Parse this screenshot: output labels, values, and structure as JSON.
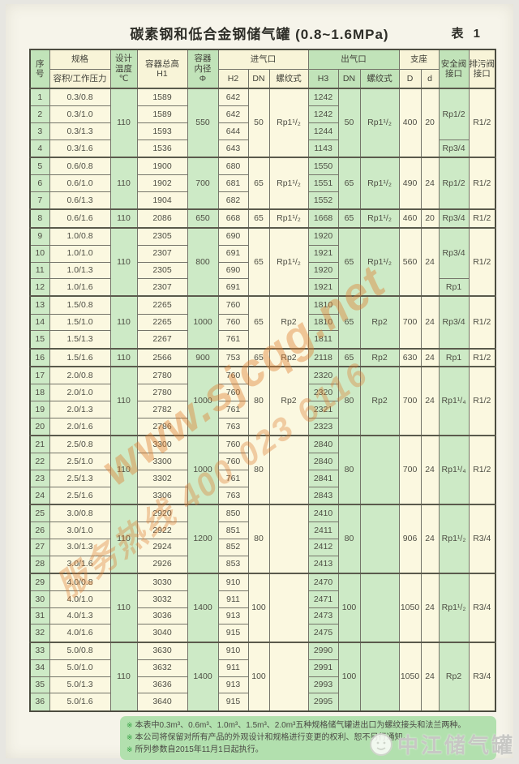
{
  "page": {
    "title": "碳素钢和低合金钢储气罐 (0.8~1.6MPa)",
    "table_label": "表 1"
  },
  "table": {
    "header": {
      "seq": "序\n号",
      "spec_top": "规格",
      "spec_bottom": "容积/工作压力",
      "temp": "设计\n温度\n℃",
      "h1": "容器总高\nH1",
      "dia": "容器\n内径\nΦ",
      "inlet": "进气口",
      "outlet": "出气口",
      "support": "支座",
      "h2": "H2",
      "dn": "DN",
      "thread": "螺纹式",
      "h3": "H3",
      "d_big": "D",
      "d_small": "d",
      "safety": "安全阀\n接口",
      "drain": "排污阀\n接口"
    },
    "col_classes": [
      "g",
      "c",
      "g",
      "c",
      "g",
      "c",
      "c",
      "c",
      "g",
      "g",
      "g",
      "c",
      "c",
      "g",
      "c"
    ],
    "rows": [
      [
        "1",
        "0.3/0.8",
        [
          "110",
          4
        ],
        "1589",
        [
          "550",
          4
        ],
        "642",
        [
          "50",
          4
        ],
        [
          "Rp1¹/₂",
          4
        ],
        "1242",
        [
          "50",
          4
        ],
        [
          "Rp1¹/₂",
          4
        ],
        [
          "400",
          4
        ],
        [
          "20",
          4
        ],
        [
          "Rp1/2",
          3
        ],
        [
          "R1/2",
          4
        ]
      ],
      [
        "2",
        "0.3/1.0",
        null,
        "1589",
        null,
        "642",
        null,
        null,
        "1242",
        null,
        null,
        null,
        null,
        null,
        null
      ],
      [
        "3",
        "0.3/1.3",
        null,
        "1593",
        null,
        "644",
        null,
        null,
        "1244",
        null,
        null,
        null,
        null,
        null,
        null
      ],
      [
        "4",
        "0.3/1.6",
        null,
        "1536",
        null,
        "643",
        null,
        null,
        "1143",
        null,
        null,
        null,
        null,
        "Rp3/4",
        null
      ],
      [
        "5",
        "0.6/0.8",
        [
          "110",
          3
        ],
        "1900",
        [
          "700",
          3
        ],
        "680",
        [
          "65",
          3
        ],
        [
          "Rp1¹/₂",
          3
        ],
        "1550",
        [
          "65",
          3
        ],
        [
          "Rp1¹/₂",
          3
        ],
        [
          "490",
          3
        ],
        [
          "24",
          3
        ],
        [
          "Rp1/2",
          3
        ],
        [
          "R1/2",
          3
        ]
      ],
      [
        "6",
        "0.6/1.0",
        null,
        "1902",
        null,
        "681",
        null,
        null,
        "1551",
        null,
        null,
        null,
        null,
        null,
        null
      ],
      [
        "7",
        "0.6/1.3",
        null,
        "1904",
        null,
        "682",
        null,
        null,
        "1552",
        null,
        null,
        null,
        null,
        null,
        null
      ],
      [
        "8",
        "0.6/1.6",
        "110",
        "2086",
        "650",
        "668",
        "65",
        "Rp1¹/₂",
        "1668",
        "65",
        "Rp1¹/₂",
        "460",
        "20",
        "Rp3/4",
        "R1/2"
      ],
      [
        "9",
        "1.0/0.8",
        [
          "110",
          4
        ],
        "2305",
        [
          "800",
          4
        ],
        "690",
        [
          "65",
          4
        ],
        [
          "Rp1¹/₂",
          4
        ],
        "1920",
        [
          "65",
          4
        ],
        [
          "Rp1¹/₂",
          4
        ],
        [
          "560",
          4
        ],
        [
          "24",
          4
        ],
        [
          "Rp3/4",
          3
        ],
        [
          "R1/2",
          4
        ]
      ],
      [
        "10",
        "1.0/1.0",
        null,
        "2307",
        null,
        "691",
        null,
        null,
        "1921",
        null,
        null,
        null,
        null,
        null,
        null
      ],
      [
        "11",
        "1.0/1.3",
        null,
        "2305",
        null,
        "690",
        null,
        null,
        "1920",
        null,
        null,
        null,
        null,
        null,
        null
      ],
      [
        "12",
        "1.0/1.6",
        null,
        "2307",
        null,
        "691",
        null,
        null,
        "1921",
        null,
        null,
        null,
        null,
        "Rp1",
        null
      ],
      [
        "13",
        "1.5/0.8",
        [
          "110",
          3
        ],
        "2265",
        [
          "1000",
          3
        ],
        "760",
        [
          "65",
          3
        ],
        [
          "Rp2",
          3
        ],
        "1810",
        [
          "65",
          3
        ],
        [
          "Rp2",
          3
        ],
        [
          "700",
          3
        ],
        [
          "24",
          3
        ],
        [
          "Rp3/4",
          3
        ],
        [
          "R1/2",
          3
        ]
      ],
      [
        "14",
        "1.5/1.0",
        null,
        "2265",
        null,
        "760",
        null,
        null,
        "1810",
        null,
        null,
        null,
        null,
        null,
        null
      ],
      [
        "15",
        "1.5/1.3",
        null,
        "2267",
        null,
        "761",
        null,
        null,
        "1811",
        null,
        null,
        null,
        null,
        null,
        null
      ],
      [
        "16",
        "1.5/1.6",
        "110",
        "2566",
        "900",
        "753",
        "65",
        "Rp2",
        "2118",
        "65",
        "Rp2",
        "630",
        "24",
        "Rp1",
        "R1/2"
      ],
      [
        "17",
        "2.0/0.8",
        [
          "110",
          4
        ],
        "2780",
        [
          "1000",
          4
        ],
        "760",
        [
          "80",
          4
        ],
        [
          "Rp2",
          4
        ],
        "2320",
        [
          "80",
          4
        ],
        [
          "Rp2",
          4
        ],
        [
          "700",
          4
        ],
        [
          "24",
          4
        ],
        [
          "Rp1¹/₄",
          4
        ],
        [
          "R1/2",
          4
        ]
      ],
      [
        "18",
        "2.0/1.0",
        null,
        "2780",
        null,
        "760",
        null,
        null,
        "2320",
        null,
        null,
        null,
        null,
        null,
        null
      ],
      [
        "19",
        "2.0/1.3",
        null,
        "2782",
        null,
        "761",
        null,
        null,
        "2321",
        null,
        null,
        null,
        null,
        null,
        null
      ],
      [
        "20",
        "2.0/1.6",
        null,
        "2786",
        null,
        "763",
        null,
        null,
        "2323",
        null,
        null,
        null,
        null,
        null,
        null
      ],
      [
        "21",
        "2.5/0.8",
        [
          "110",
          4
        ],
        "3300",
        [
          "1000",
          4
        ],
        "760",
        [
          "80",
          4
        ],
        [
          "",
          4
        ],
        "2840",
        [
          "80",
          4
        ],
        [
          "",
          4
        ],
        [
          "700",
          4
        ],
        [
          "24",
          4
        ],
        [
          "Rp1¹/₄",
          4
        ],
        [
          "R1/2",
          4
        ]
      ],
      [
        "22",
        "2.5/1.0",
        null,
        "3300",
        null,
        "760",
        null,
        null,
        "2840",
        null,
        null,
        null,
        null,
        null,
        null
      ],
      [
        "23",
        "2.5/1.3",
        null,
        "3302",
        null,
        "761",
        null,
        null,
        "2841",
        null,
        null,
        null,
        null,
        null,
        null
      ],
      [
        "24",
        "2.5/1.6",
        null,
        "3306",
        null,
        "763",
        null,
        null,
        "2843",
        null,
        null,
        null,
        null,
        null,
        null
      ],
      [
        "25",
        "3.0/0.8",
        [
          "110",
          4
        ],
        "2920",
        [
          "1200",
          4
        ],
        "850",
        [
          "80",
          4
        ],
        [
          "",
          4
        ],
        "2410",
        [
          "80",
          4
        ],
        [
          "",
          4
        ],
        [
          "906",
          4
        ],
        [
          "24",
          4
        ],
        [
          "Rp1¹/₂",
          4
        ],
        [
          "R3/4",
          4
        ]
      ],
      [
        "26",
        "3.0/1.0",
        null,
        "2922",
        null,
        "851",
        null,
        null,
        "2411",
        null,
        null,
        null,
        null,
        null,
        null
      ],
      [
        "27",
        "3.0/1.3",
        null,
        "2924",
        null,
        "852",
        null,
        null,
        "2412",
        null,
        null,
        null,
        null,
        null,
        null
      ],
      [
        "28",
        "3.0/1.6",
        null,
        "2926",
        null,
        "853",
        null,
        null,
        "2413",
        null,
        null,
        null,
        null,
        null,
        null
      ],
      [
        "29",
        "4.0/0.8",
        [
          "110",
          4
        ],
        "3030",
        [
          "1400",
          4
        ],
        "910",
        [
          "100",
          4
        ],
        [
          "",
          4
        ],
        "2470",
        [
          "100",
          4
        ],
        [
          "",
          4
        ],
        [
          "1050",
          4
        ],
        [
          "24",
          4
        ],
        [
          "Rp1¹/₂",
          4
        ],
        [
          "R3/4",
          4
        ]
      ],
      [
        "30",
        "4.0/1.0",
        null,
        "3032",
        null,
        "911",
        null,
        null,
        "2471",
        null,
        null,
        null,
        null,
        null,
        null
      ],
      [
        "31",
        "4.0/1.3",
        null,
        "3036",
        null,
        "913",
        null,
        null,
        "2473",
        null,
        null,
        null,
        null,
        null,
        null
      ],
      [
        "32",
        "4.0/1.6",
        null,
        "3040",
        null,
        "915",
        null,
        null,
        "2475",
        null,
        null,
        null,
        null,
        null,
        null
      ],
      [
        "33",
        "5.0/0.8",
        [
          "110",
          4
        ],
        "3630",
        [
          "1400",
          4
        ],
        "910",
        [
          "100",
          4
        ],
        [
          "",
          4
        ],
        "2990",
        [
          "100",
          4
        ],
        [
          "",
          4
        ],
        [
          "1050",
          4
        ],
        [
          "24",
          4
        ],
        [
          "Rp2",
          4
        ],
        [
          "R3/4",
          4
        ]
      ],
      [
        "34",
        "5.0/1.0",
        null,
        "3632",
        null,
        "911",
        null,
        null,
        "2991",
        null,
        null,
        null,
        null,
        null,
        null
      ],
      [
        "35",
        "5.0/1.3",
        null,
        "3636",
        null,
        "913",
        null,
        null,
        "2993",
        null,
        null,
        null,
        null,
        null,
        null
      ],
      [
        "36",
        "5.0/1.6",
        null,
        "3640",
        null,
        "915",
        null,
        null,
        "2995",
        null,
        null,
        null,
        null,
        null,
        null
      ]
    ]
  },
  "notes": {
    "marker": "※",
    "items": [
      "本表中0.3m³、0.6m³、1.0m³、1.5m³、2.0m³五种规格储气罐进出口为螺纹接头和法兰两种。",
      "本公司将保留对所有产品的外观设计和规格进行变更的权利、恕不另行通知。",
      "所列参数自2015年11月1日起执行。"
    ]
  },
  "watermark": {
    "site": "www.sjcqg.net",
    "phone": "服务热线 400 023 6116",
    "brand": "中江储气罐"
  }
}
